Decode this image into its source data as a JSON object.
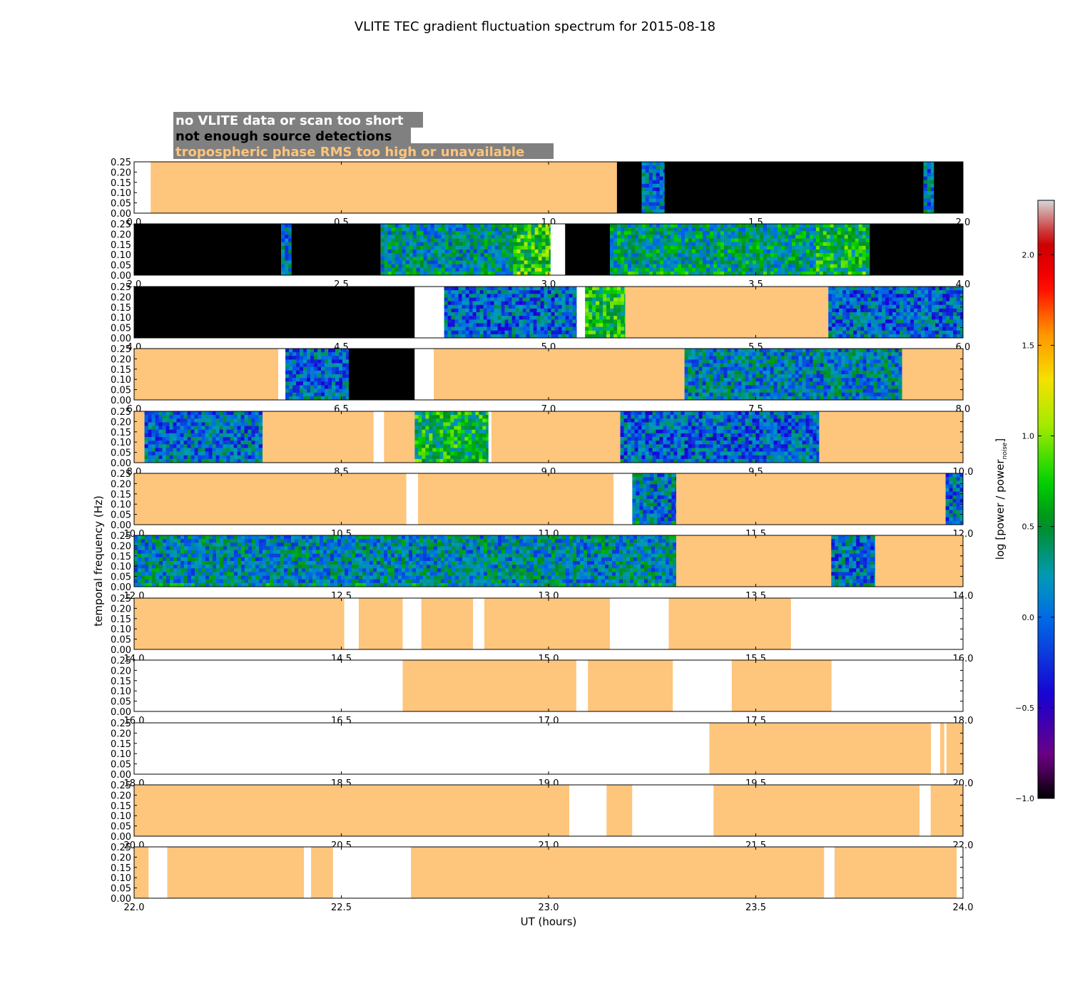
{
  "chart_data": {
    "type": "heatmap",
    "title": "VLITE TEC gradient fluctuation spectrum for 2015-08-18",
    "xlabel": "UT (hours)",
    "ylabel": "temporal frequency (Hz)",
    "ylim": [
      0,
      0.25
    ],
    "yticks": [
      "0.00",
      "0.05",
      "0.10",
      "0.15",
      "0.20",
      "0.25"
    ],
    "legend": [
      {
        "text": "no VLITE data or scan too short",
        "color": "#ffffff",
        "state": "white"
      },
      {
        "text": "not enough source detections",
        "color": "#000000",
        "state": "black"
      },
      {
        "text": "tropospheric phase RMS too high or unavailable",
        "color": "#fec57c",
        "state": "orange"
      }
    ],
    "colorbar": {
      "label_main": "log [power / power",
      "label_sub": "noise",
      "label_end": "]",
      "range": [
        -1.0,
        2.3
      ],
      "ticks": [
        "−1.0",
        "−0.5",
        "0.0",
        "0.5",
        "1.0",
        "1.5",
        "2.0"
      ],
      "tick_values": [
        -1.0,
        -0.5,
        0.0,
        0.5,
        1.0,
        1.5,
        2.0
      ]
    },
    "panels": [
      {
        "xlim": [
          0.0,
          2.0
        ],
        "xticks": [
          "0.0",
          "0.5",
          "1.0",
          "1.5",
          "2.0"
        ],
        "segments": [
          {
            "start": 0.0,
            "end": 0.04,
            "state": "white"
          },
          {
            "start": 0.04,
            "end": 1.165,
            "state": "orange"
          },
          {
            "start": 1.165,
            "end": 1.225,
            "state": "black"
          },
          {
            "start": 1.225,
            "end": 1.28,
            "state": "spectrum",
            "level": 0.05
          },
          {
            "start": 1.28,
            "end": 1.905,
            "state": "black"
          },
          {
            "start": 1.905,
            "end": 1.93,
            "state": "spectrum",
            "level": 0.1
          },
          {
            "start": 1.93,
            "end": 2.0,
            "state": "black"
          }
        ]
      },
      {
        "xlim": [
          2.0,
          4.0
        ],
        "xticks": [
          "2.0",
          "2.5",
          "3.0",
          "3.5",
          "4.0"
        ],
        "segments": [
          {
            "start": 2.0,
            "end": 2.355,
            "state": "black"
          },
          {
            "start": 2.355,
            "end": 2.38,
            "state": "spectrum",
            "level": 0.1
          },
          {
            "start": 2.38,
            "end": 2.595,
            "state": "black"
          },
          {
            "start": 2.595,
            "end": 2.915,
            "state": "spectrum",
            "level": 0.25
          },
          {
            "start": 2.915,
            "end": 3.005,
            "state": "spectrum",
            "level": 0.75
          },
          {
            "start": 3.005,
            "end": 3.04,
            "state": "white"
          },
          {
            "start": 3.04,
            "end": 3.148,
            "state": "black"
          },
          {
            "start": 3.148,
            "end": 3.645,
            "state": "spectrum",
            "level": 0.35
          },
          {
            "start": 3.645,
            "end": 3.775,
            "state": "spectrum",
            "level": 0.55
          },
          {
            "start": 3.775,
            "end": 4.0,
            "state": "black"
          }
        ]
      },
      {
        "xlim": [
          4.0,
          6.0
        ],
        "xticks": [
          "4.0",
          "4.5",
          "5.0",
          "5.5",
          "6.0"
        ],
        "segments": [
          {
            "start": 4.0,
            "end": 4.677,
            "state": "black"
          },
          {
            "start": 4.677,
            "end": 4.748,
            "state": "white"
          },
          {
            "start": 4.748,
            "end": 5.068,
            "state": "spectrum",
            "level": 0.0
          },
          {
            "start": 5.068,
            "end": 5.088,
            "state": "white"
          },
          {
            "start": 5.088,
            "end": 5.185,
            "state": "spectrum",
            "level": 0.6
          },
          {
            "start": 5.185,
            "end": 5.675,
            "state": "orange"
          },
          {
            "start": 5.675,
            "end": 6.0,
            "state": "spectrum",
            "level": 0.0
          }
        ]
      },
      {
        "xlim": [
          6.0,
          8.0
        ],
        "xticks": [
          "6.0",
          "6.5",
          "7.0",
          "7.5",
          "8.0"
        ],
        "segments": [
          {
            "start": 6.0,
            "end": 6.348,
            "state": "orange"
          },
          {
            "start": 6.348,
            "end": 6.365,
            "state": "white"
          },
          {
            "start": 6.365,
            "end": 6.518,
            "state": "spectrum",
            "level": 0.0
          },
          {
            "start": 6.518,
            "end": 6.677,
            "state": "black"
          },
          {
            "start": 6.677,
            "end": 6.723,
            "state": "white"
          },
          {
            "start": 6.723,
            "end": 7.328,
            "state": "orange"
          },
          {
            "start": 7.328,
            "end": 7.853,
            "state": "spectrum",
            "level": 0.15
          },
          {
            "start": 7.853,
            "end": 8.0,
            "state": "orange"
          }
        ]
      },
      {
        "xlim": [
          8.0,
          10.0
        ],
        "xticks": [
          "8.0",
          "8.5",
          "9.0",
          "9.5",
          "10.0"
        ],
        "segments": [
          {
            "start": 8.0,
            "end": 8.025,
            "state": "orange"
          },
          {
            "start": 8.025,
            "end": 8.31,
            "state": "spectrum",
            "level": 0.05
          },
          {
            "start": 8.31,
            "end": 8.578,
            "state": "orange"
          },
          {
            "start": 8.578,
            "end": 8.603,
            "state": "white"
          },
          {
            "start": 8.603,
            "end": 8.677,
            "state": "orange"
          },
          {
            "start": 8.677,
            "end": 8.855,
            "state": "spectrum",
            "level": 0.55
          },
          {
            "start": 8.855,
            "end": 8.862,
            "state": "white"
          },
          {
            "start": 8.862,
            "end": 9.173,
            "state": "orange"
          },
          {
            "start": 9.173,
            "end": 9.653,
            "state": "spectrum",
            "level": 0.0
          },
          {
            "start": 9.653,
            "end": 10.0,
            "state": "orange"
          }
        ]
      },
      {
        "xlim": [
          10.0,
          12.0
        ],
        "xticks": [
          "10.0",
          "10.5",
          "11.0",
          "11.5",
          "12.0"
        ],
        "segments": [
          {
            "start": 10.0,
            "end": 10.657,
            "state": "orange"
          },
          {
            "start": 10.657,
            "end": 10.685,
            "state": "white"
          },
          {
            "start": 10.685,
            "end": 11.157,
            "state": "orange"
          },
          {
            "start": 11.157,
            "end": 11.202,
            "state": "white"
          },
          {
            "start": 11.202,
            "end": 11.308,
            "state": "spectrum",
            "level": 0.1
          },
          {
            "start": 11.308,
            "end": 11.958,
            "state": "orange"
          },
          {
            "start": 11.958,
            "end": 12.0,
            "state": "spectrum",
            "level": 0.05
          }
        ]
      },
      {
        "xlim": [
          12.0,
          14.0
        ],
        "xticks": [
          "12.0",
          "12.5",
          "13.0",
          "13.5",
          "14.0"
        ],
        "segments": [
          {
            "start": 12.0,
            "end": 13.308,
            "state": "spectrum",
            "level": 0.2
          },
          {
            "start": 13.308,
            "end": 13.682,
            "state": "orange"
          },
          {
            "start": 13.682,
            "end": 13.788,
            "state": "spectrum",
            "level": 0.05
          },
          {
            "start": 13.788,
            "end": 14.0,
            "state": "orange"
          }
        ]
      },
      {
        "xlim": [
          14.0,
          16.0
        ],
        "xticks": [
          "14.0",
          "14.5",
          "15.0",
          "15.5",
          "16.0"
        ],
        "segments": [
          {
            "start": 14.0,
            "end": 14.507,
            "state": "orange"
          },
          {
            "start": 14.507,
            "end": 14.542,
            "state": "white"
          },
          {
            "start": 14.542,
            "end": 14.648,
            "state": "orange"
          },
          {
            "start": 14.648,
            "end": 14.693,
            "state": "white"
          },
          {
            "start": 14.693,
            "end": 14.818,
            "state": "orange"
          },
          {
            "start": 14.818,
            "end": 14.845,
            "state": "white"
          },
          {
            "start": 14.845,
            "end": 15.148,
            "state": "orange"
          },
          {
            "start": 15.148,
            "end": 15.29,
            "state": "white"
          },
          {
            "start": 15.29,
            "end": 15.585,
            "state": "orange"
          },
          {
            "start": 15.585,
            "end": 16.0,
            "state": "white"
          }
        ]
      },
      {
        "xlim": [
          16.0,
          18.0
        ],
        "xticks": [
          "16.0",
          "16.5",
          "17.0",
          "17.5",
          "18.0"
        ],
        "segments": [
          {
            "start": 16.0,
            "end": 16.648,
            "state": "white"
          },
          {
            "start": 16.648,
            "end": 17.067,
            "state": "orange"
          },
          {
            "start": 17.067,
            "end": 17.095,
            "state": "white"
          },
          {
            "start": 17.095,
            "end": 17.3,
            "state": "orange"
          },
          {
            "start": 17.3,
            "end": 17.442,
            "state": "white"
          },
          {
            "start": 17.442,
            "end": 17.683,
            "state": "orange"
          },
          {
            "start": 17.683,
            "end": 18.0,
            "state": "white"
          }
        ]
      },
      {
        "xlim": [
          18.0,
          20.0
        ],
        "xticks": [
          "18.0",
          "18.5",
          "19.0",
          "19.5",
          "20.0"
        ],
        "segments": [
          {
            "start": 18.0,
            "end": 19.388,
            "state": "white"
          },
          {
            "start": 19.388,
            "end": 19.923,
            "state": "orange"
          },
          {
            "start": 19.923,
            "end": 19.945,
            "state": "white"
          },
          {
            "start": 19.945,
            "end": 19.955,
            "state": "orange"
          },
          {
            "start": 19.955,
            "end": 19.96,
            "state": "white"
          },
          {
            "start": 19.96,
            "end": 20.0,
            "state": "orange"
          }
        ]
      },
      {
        "xlim": [
          20.0,
          22.0
        ],
        "xticks": [
          "20.0",
          "20.5",
          "21.0",
          "21.5",
          "22.0"
        ],
        "segments": [
          {
            "start": 20.0,
            "end": 21.05,
            "state": "orange"
          },
          {
            "start": 21.05,
            "end": 21.14,
            "state": "white"
          },
          {
            "start": 21.14,
            "end": 21.202,
            "state": "orange"
          },
          {
            "start": 21.202,
            "end": 21.398,
            "state": "white"
          },
          {
            "start": 21.398,
            "end": 21.895,
            "state": "orange"
          },
          {
            "start": 21.895,
            "end": 21.922,
            "state": "white"
          },
          {
            "start": 21.922,
            "end": 22.0,
            "state": "orange"
          }
        ]
      },
      {
        "xlim": [
          22.0,
          24.0
        ],
        "xticks": [
          "22.0",
          "22.5",
          "23.0",
          "23.5",
          "24.0"
        ],
        "segments": [
          {
            "start": 22.0,
            "end": 22.035,
            "state": "orange"
          },
          {
            "start": 22.035,
            "end": 22.08,
            "state": "white"
          },
          {
            "start": 22.08,
            "end": 22.41,
            "state": "orange"
          },
          {
            "start": 22.41,
            "end": 22.427,
            "state": "white"
          },
          {
            "start": 22.427,
            "end": 22.48,
            "state": "orange"
          },
          {
            "start": 22.48,
            "end": 22.668,
            "state": "white"
          },
          {
            "start": 22.668,
            "end": 23.665,
            "state": "orange"
          },
          {
            "start": 23.665,
            "end": 23.69,
            "state": "white"
          },
          {
            "start": 23.69,
            "end": 23.985,
            "state": "orange"
          },
          {
            "start": 23.985,
            "end": 24.0,
            "state": "white"
          }
        ]
      }
    ]
  }
}
